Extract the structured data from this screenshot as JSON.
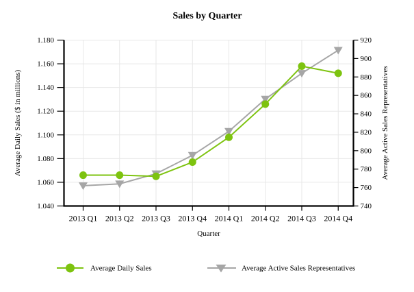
{
  "chart_data": {
    "type": "line",
    "title": "Sales by Quarter",
    "xlabel": "Quarter",
    "ylabel_left": "Average Daily Sales ($ in millions)",
    "ylabel_right": "Average Active Sales Representatives",
    "categories": [
      "2013 Q1",
      "2013 Q2",
      "2013 Q3",
      "2013 Q4",
      "2014 Q1",
      "2014 Q2",
      "2014 Q3",
      "2014 Q4"
    ],
    "series": [
      {
        "name": "Average Daily Sales",
        "axis": "left",
        "marker": "circle",
        "color": "#7DC30F",
        "values": [
          1.066,
          1.066,
          1.065,
          1.077,
          1.098,
          1.126,
          1.158,
          1.152
        ]
      },
      {
        "name": "Average Active Sales Representatives",
        "axis": "right",
        "marker": "triangle-down",
        "color": "#A6A6A6",
        "values": [
          762,
          764,
          775,
          795,
          821,
          856,
          884,
          909
        ]
      }
    ],
    "y_left": {
      "min": 1.04,
      "max": 1.18,
      "ticks": [
        "1.040",
        "1.060",
        "1.080",
        "1.100",
        "1.120",
        "1.140",
        "1.160",
        "1.180"
      ]
    },
    "y_right": {
      "min": 740,
      "max": 920,
      "ticks": [
        "740",
        "760",
        "780",
        "800",
        "820",
        "840",
        "860",
        "880",
        "900",
        "920"
      ]
    },
    "grid": true,
    "legend_position": "bottom",
    "colors": {
      "background": "#FFFFFF",
      "gridline": "#E7E7E7",
      "axis": "#000000",
      "text": "#000000",
      "series_daily_sales": "#7DC30F",
      "series_active_reps": "#A6A6A6"
    }
  }
}
